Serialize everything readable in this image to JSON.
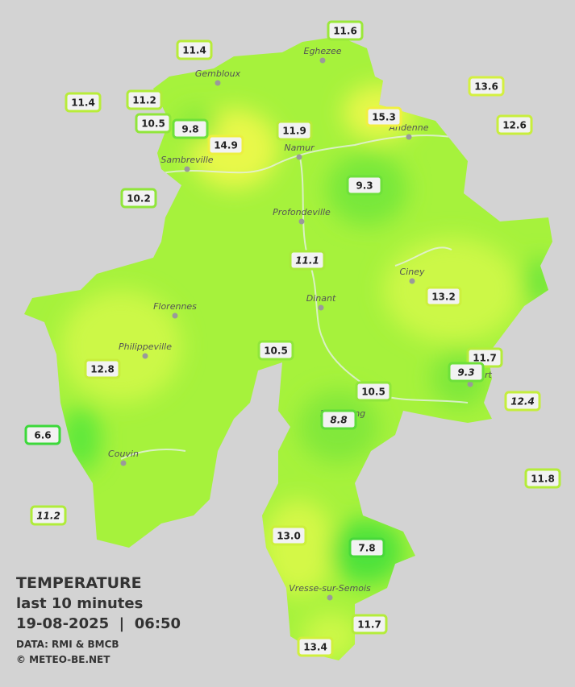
{
  "stations": [
    "11.6",
    "11.4",
    "13.6",
    "11.4",
    "11.2",
    "15.3",
    "12.6",
    "10.5",
    "9.8",
    "11.9",
    "14.9",
    "9.3",
    "10.2",
    "11.1",
    "13.2",
    "10.5",
    "11.7",
    "9.3",
    "12.8",
    "10.5",
    "12.4",
    "8.8",
    "6.6",
    "11.8",
    "11.2",
    "13.0",
    "7.8",
    "11.7",
    "13.4"
  ],
  "cities": [
    "Eghezee",
    "Gembloux",
    "Andenne",
    "Namur",
    "Sambreville",
    "Profondeville",
    "Ciney",
    "Dinant",
    "Florennes",
    "Philippeville",
    "Rochefort",
    "Beauraing",
    "Couvin",
    "Vresse-sur-Semois"
  ],
  "legend": {
    "title": "TEMPERATURE",
    "subtitle": "last 10 minutes",
    "datetime": "19-08-2025  |  06:50",
    "source": "DATA: RMI & BMCB",
    "copyright": "© METEO-BE.NET"
  }
}
